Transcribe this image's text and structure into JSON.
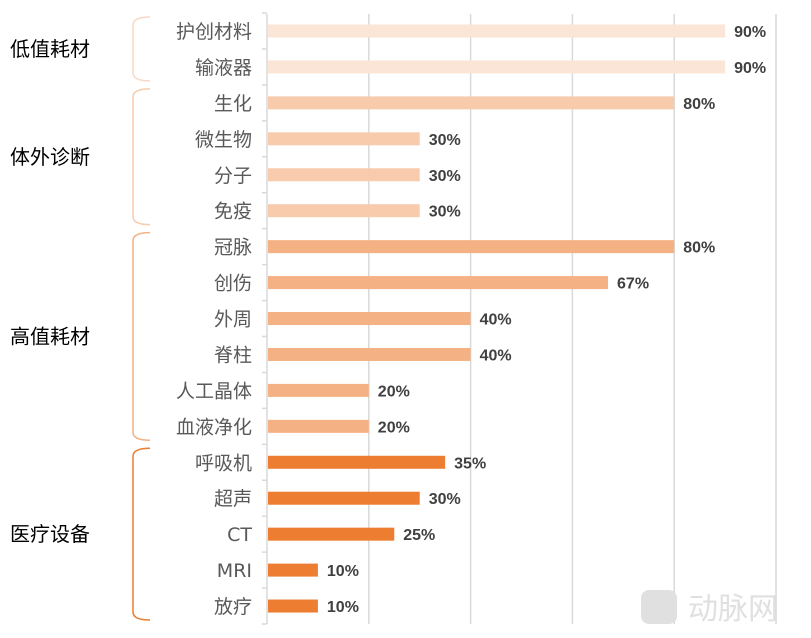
{
  "chart_data": {
    "type": "bar",
    "orientation": "horizontal",
    "xlim": [
      0,
      100
    ],
    "grid": true,
    "value_format": "percent",
    "groups": [
      {
        "name": "低值耗材",
        "color": "#fbe5d6",
        "categories": [
          "护创材料",
          "输液器"
        ],
        "values": [
          90,
          90
        ]
      },
      {
        "name": "体外诊断",
        "color": "#f8cbad",
        "categories": [
          "生化",
          "微生物",
          "分子",
          "免疫"
        ],
        "values": [
          80,
          30,
          30,
          30
        ]
      },
      {
        "name": "高值耗材",
        "color": "#f4b183",
        "categories": [
          "冠脉",
          "创伤",
          "外周",
          "脊柱",
          "人工晶体",
          "血液净化"
        ],
        "values": [
          80,
          67,
          40,
          40,
          20,
          20
        ]
      },
      {
        "name": "医疗设备",
        "color": "#ed7d31",
        "categories": [
          "呼吸机",
          "超声",
          "CT",
          "MRI",
          "放疗"
        ],
        "values": [
          35,
          30,
          25,
          10,
          10
        ]
      }
    ]
  },
  "watermark": "动脉网"
}
